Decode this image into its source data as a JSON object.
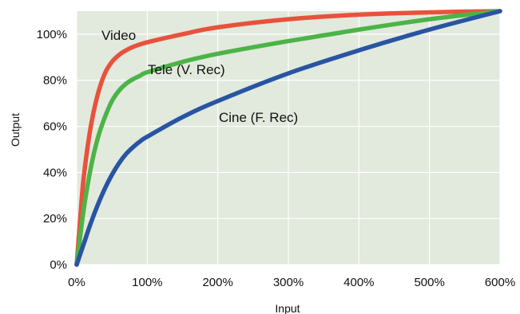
{
  "chart_data": {
    "type": "line",
    "xlabel": "Input",
    "ylabel": "Output",
    "xlim": [
      0,
      600
    ],
    "ylim": [
      0,
      110
    ],
    "x_unit": "%",
    "y_unit": "%",
    "grid": true,
    "background_color": "#e2e9dd",
    "grid_color": "#ffffff",
    "x_ticks": [
      0,
      100,
      200,
      300,
      400,
      500,
      600
    ],
    "x_tick_labels": [
      "0%",
      "100%",
      "200%",
      "300%",
      "400%",
      "500%",
      "600%"
    ],
    "y_ticks": [
      0,
      20,
      40,
      60,
      80,
      100
    ],
    "y_tick_labels": [
      "0%",
      "20%",
      "40%",
      "60%",
      "80%",
      "100%"
    ],
    "series": [
      {
        "name": "Video",
        "color": "#e8523c",
        "x": [
          0,
          5,
          10,
          20,
          30,
          40,
          50,
          60,
          70,
          80,
          100,
          150,
          200,
          300,
          400,
          500,
          600
        ],
        "y": [
          0,
          20,
          38,
          60,
          74,
          83,
          88,
          91,
          93,
          94.5,
          96.5,
          100,
          103,
          106.5,
          108.5,
          109.5,
          110
        ]
      },
      {
        "name": "Tele (V. Rec)",
        "color": "#4cb447",
        "x": [
          0,
          10,
          20,
          30,
          40,
          50,
          60,
          70,
          80,
          90,
          100,
          150,
          200,
          300,
          400,
          500,
          600
        ],
        "y": [
          0,
          24,
          42,
          55,
          64,
          71,
          75.5,
          78.5,
          80.5,
          82,
          83.5,
          88,
          91.5,
          97,
          102,
          106.5,
          110
        ]
      },
      {
        "name": "Cine (F. Rec)",
        "color": "#2855a3",
        "x": [
          0,
          10,
          20,
          30,
          40,
          50,
          60,
          70,
          80,
          90,
          100,
          150,
          200,
          300,
          400,
          500,
          600
        ],
        "y": [
          0,
          9,
          18,
          26,
          33,
          39,
          44,
          48,
          51,
          53.5,
          55.5,
          64,
          71,
          83,
          93,
          102,
          110
        ]
      }
    ],
    "annotations": [
      {
        "text": "Video",
        "series": 0
      },
      {
        "text": "Tele (V. Rec)",
        "series": 1
      },
      {
        "text": "Cine (F. Rec)",
        "series": 2
      }
    ]
  }
}
